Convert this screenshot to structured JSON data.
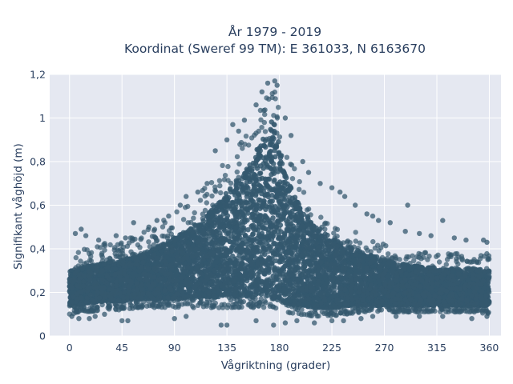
{
  "chart_data": {
    "type": "scatter",
    "title_line1": "År 1979 - 2019",
    "title_line2": "Koordinat (Sweref 99 TM): E 361033, N 6163670",
    "xlabel": "Vågriktning (grader)",
    "ylabel": "Signifikant våghöjd (m)",
    "xlim": [
      -17,
      370
    ],
    "ylim": [
      0,
      1.2
    ],
    "x_ticks": [
      0,
      45,
      90,
      135,
      180,
      225,
      270,
      315,
      360
    ],
    "x_tick_labels": [
      "0",
      "45",
      "90",
      "135",
      "180",
      "225",
      "270",
      "315",
      "360"
    ],
    "y_ticks": [
      0,
      0.2,
      0.4,
      0.6,
      0.8,
      1,
      1.2
    ],
    "y_tick_labels": [
      "0",
      "0,2",
      "0,4",
      "0,6",
      "0,8",
      "1",
      "1,2"
    ],
    "grid": true,
    "marker_color": "#34586e",
    "plot_background": "#e5e8f1",
    "envelope": {
      "x": [
        0,
        15,
        30,
        45,
        60,
        75,
        90,
        105,
        120,
        135,
        150,
        160,
        170,
        175,
        180,
        185,
        195,
        210,
        225,
        240,
        255,
        270,
        285,
        300,
        315,
        330,
        345,
        360
      ],
      "y_low": [
        0.1,
        0.11,
        0.12,
        0.12,
        0.13,
        0.13,
        0.13,
        0.13,
        0.13,
        0.13,
        0.13,
        0.13,
        0.13,
        0.13,
        0.12,
        0.11,
        0.1,
        0.09,
        0.09,
        0.1,
        0.11,
        0.11,
        0.11,
        0.11,
        0.11,
        0.11,
        0.11,
        0.1
      ],
      "y_high": [
        0.38,
        0.41,
        0.43,
        0.44,
        0.47,
        0.52,
        0.57,
        0.62,
        0.7,
        0.81,
        0.93,
        1.02,
        1.12,
        1.16,
        1.04,
        0.88,
        0.74,
        0.61,
        0.54,
        0.49,
        0.45,
        0.42,
        0.4,
        0.39,
        0.38,
        0.38,
        0.38,
        0.38
      ],
      "dense_high": [
        0.3,
        0.32,
        0.34,
        0.35,
        0.37,
        0.41,
        0.45,
        0.5,
        0.57,
        0.66,
        0.76,
        0.85,
        0.95,
        1.0,
        0.88,
        0.74,
        0.62,
        0.51,
        0.45,
        0.41,
        0.38,
        0.35,
        0.33,
        0.32,
        0.31,
        0.31,
        0.31,
        0.3
      ],
      "dense_low": [
        0.14,
        0.15,
        0.16,
        0.16,
        0.17,
        0.17,
        0.17,
        0.18,
        0.18,
        0.18,
        0.18,
        0.18,
        0.18,
        0.17,
        0.16,
        0.15,
        0.14,
        0.13,
        0.13,
        0.14,
        0.14,
        0.14,
        0.14,
        0.14,
        0.14,
        0.14,
        0.14,
        0.14
      ]
    },
    "outliers": [
      [
        5,
        0.47
      ],
      [
        10,
        0.49
      ],
      [
        14,
        0.46
      ],
      [
        25,
        0.44
      ],
      [
        40,
        0.46
      ],
      [
        48,
        0.45
      ],
      [
        55,
        0.52
      ],
      [
        17,
        0.08
      ],
      [
        22,
        0.09
      ],
      [
        45,
        0.07
      ],
      [
        50,
        0.07
      ],
      [
        90,
        0.08
      ],
      [
        68,
        0.5
      ],
      [
        75,
        0.53
      ],
      [
        85,
        0.55
      ],
      [
        95,
        0.6
      ],
      [
        100,
        0.64
      ],
      [
        110,
        0.66
      ],
      [
        118,
        0.7
      ],
      [
        125,
        0.85
      ],
      [
        135,
        0.9
      ],
      [
        140,
        0.97
      ],
      [
        145,
        0.94
      ],
      [
        150,
        0.99
      ],
      [
        160,
        1.06
      ],
      [
        165,
        1.12
      ],
      [
        170,
        1.16
      ],
      [
        176,
        1.17
      ],
      [
        178,
        1.15
      ],
      [
        185,
        1.0
      ],
      [
        190,
        0.92
      ],
      [
        200,
        0.8
      ],
      [
        205,
        0.75
      ],
      [
        215,
        0.7
      ],
      [
        225,
        0.68
      ],
      [
        232,
        0.66
      ],
      [
        236,
        0.64
      ],
      [
        245,
        0.6
      ],
      [
        255,
        0.56
      ],
      [
        260,
        0.55
      ],
      [
        265,
        0.53
      ],
      [
        275,
        0.52
      ],
      [
        288,
        0.48
      ],
      [
        290,
        0.6
      ],
      [
        300,
        0.47
      ],
      [
        310,
        0.46
      ],
      [
        320,
        0.53
      ],
      [
        330,
        0.45
      ],
      [
        340,
        0.44
      ],
      [
        355,
        0.44
      ],
      [
        358,
        0.43
      ],
      [
        130,
        0.05
      ],
      [
        135,
        0.05
      ],
      [
        160,
        0.07
      ],
      [
        175,
        0.05
      ],
      [
        185,
        0.06
      ],
      [
        195,
        0.07
      ],
      [
        210,
        0.06
      ],
      [
        225,
        0.07
      ],
      [
        235,
        0.07
      ],
      [
        250,
        0.08
      ],
      [
        260,
        0.09
      ],
      [
        280,
        0.09
      ],
      [
        300,
        0.09
      ],
      [
        320,
        0.09
      ],
      [
        345,
        0.08
      ],
      [
        358,
        0.09
      ],
      [
        2,
        0.09
      ],
      [
        8,
        0.08
      ],
      [
        30,
        0.1
      ],
      [
        100,
        0.09
      ]
    ]
  }
}
